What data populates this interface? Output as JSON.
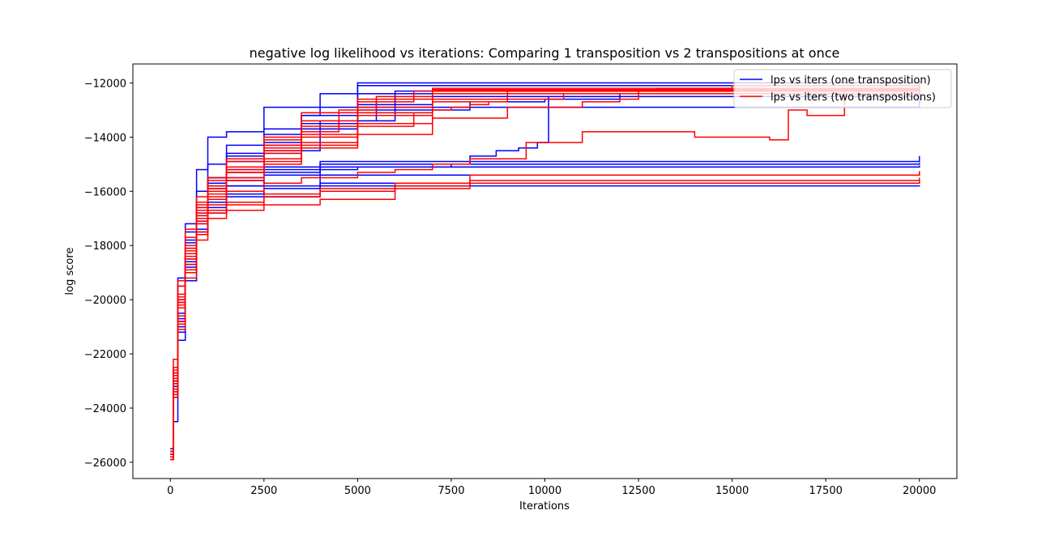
{
  "chart_data": {
    "type": "line",
    "title": "negative log likelihood vs iterations: Comparing 1 transposition vs 2 transpositions at once",
    "xlabel": "Iterations",
    "ylabel": "log score",
    "xlim": [
      -1000,
      21000
    ],
    "ylim": [
      -26600,
      -11300
    ],
    "xticks": [
      0,
      2500,
      5000,
      7500,
      10000,
      12500,
      15000,
      17500,
      20000
    ],
    "xtick_labels": [
      "0",
      "2500",
      "5000",
      "7500",
      "10000",
      "12500",
      "15000",
      "17500",
      "20000"
    ],
    "yticks": [
      -26000,
      -24000,
      -22000,
      -20000,
      -18000,
      -16000,
      -14000,
      -12000
    ],
    "ytick_labels": [
      "−26000",
      "−24000",
      "−22000",
      "−20000",
      "−18000",
      "−16000",
      "−14000",
      "−12000"
    ],
    "grid": false,
    "legend_position": "top-right",
    "colors": {
      "one": "#0000ff",
      "two": "#ff0000"
    },
    "legend": [
      {
        "label": "lps vs iters (one transposition)",
        "color": "#0000ff"
      },
      {
        "label": "lps vs iters (two transpositions)",
        "color": "#ff0000"
      }
    ],
    "series": [
      {
        "group": "one",
        "color": "#0000ff",
        "x": [
          0,
          80,
          200,
          400,
          700,
          1000,
          1500,
          2500,
          20000
        ],
        "y": [
          -25800,
          -23000,
          -20000,
          -17500,
          -15200,
          -14000,
          -13800,
          -12900,
          -12500
        ]
      },
      {
        "group": "one",
        "color": "#0000ff",
        "x": [
          0,
          80,
          200,
          400,
          700,
          1000,
          1500,
          2500,
          3500,
          5000,
          20000
        ],
        "y": [
          -25600,
          -22800,
          -19200,
          -17200,
          -16000,
          -15000,
          -14300,
          -13700,
          -13200,
          -12000,
          -11950
        ]
      },
      {
        "group": "one",
        "color": "#0000ff",
        "x": [
          0,
          80,
          200,
          400,
          700,
          1000,
          1500,
          2500,
          3500,
          5000,
          20000
        ],
        "y": [
          -25500,
          -22500,
          -19500,
          -17800,
          -16700,
          -15800,
          -14600,
          -13900,
          -13400,
          -12100,
          -12000
        ]
      },
      {
        "group": "one",
        "color": "#0000ff",
        "x": [
          0,
          80,
          200,
          400,
          700,
          1000,
          1500,
          2500,
          3500,
          4000,
          20000
        ],
        "y": [
          -25700,
          -23200,
          -20500,
          -18500,
          -16800,
          -15500,
          -14700,
          -14100,
          -13200,
          -12400,
          -12100
        ]
      },
      {
        "group": "one",
        "color": "#0000ff",
        "x": [
          0,
          80,
          200,
          400,
          700,
          1000,
          1500,
          2500,
          3500,
          4500,
          5500,
          6000,
          20000
        ],
        "y": [
          -25900,
          -23500,
          -21000,
          -18600,
          -16900,
          -16000,
          -15300,
          -14600,
          -13800,
          -13400,
          -12700,
          -12300,
          -12200
        ]
      },
      {
        "group": "one",
        "color": "#0000ff",
        "x": [
          0,
          80,
          200,
          400,
          700,
          1000,
          1500,
          2500,
          4000,
          6000,
          20000
        ],
        "y": [
          -25600,
          -23100,
          -20300,
          -18100,
          -16700,
          -15900,
          -15200,
          -14500,
          -13400,
          -12500,
          -12300
        ]
      },
      {
        "group": "one",
        "color": "#0000ff",
        "x": [
          0,
          80,
          200,
          400,
          700,
          1000,
          1500,
          2500,
          3500,
          5000,
          7000,
          20000
        ],
        "y": [
          -25800,
          -22900,
          -19900,
          -17900,
          -16400,
          -15700,
          -14900,
          -14300,
          -13700,
          -12800,
          -12400,
          -12250
        ]
      },
      {
        "group": "one",
        "color": "#0000ff",
        "x": [
          0,
          80,
          200,
          400,
          700,
          1000,
          1500,
          2500,
          3500,
          5000,
          8000,
          10000,
          12000,
          20000
        ],
        "y": [
          -25500,
          -22700,
          -20100,
          -18300,
          -16600,
          -15500,
          -15100,
          -14200,
          -13500,
          -13000,
          -12700,
          -12600,
          -12400,
          -12200
        ]
      },
      {
        "group": "one",
        "color": "#0000ff",
        "x": [
          0,
          80,
          200,
          400,
          700,
          1000,
          1500,
          2500,
          3500,
          5000,
          7500,
          8000,
          8700,
          9300,
          9800,
          10100,
          20000
        ],
        "y": [
          -25700,
          -23400,
          -20800,
          -18800,
          -17000,
          -16000,
          -15500,
          -15200,
          -15200,
          -15100,
          -15000,
          -14700,
          -14500,
          -14400,
          -14200,
          -12500,
          -12400
        ]
      },
      {
        "group": "one",
        "color": "#0000ff",
        "x": [
          0,
          80,
          200,
          400,
          700,
          1000,
          1500,
          2500,
          4000,
          20000
        ],
        "y": [
          -25900,
          -23600,
          -21200,
          -19000,
          -17200,
          -16400,
          -15600,
          -15100,
          -14900,
          -14700
        ]
      },
      {
        "group": "one",
        "color": "#0000ff",
        "x": [
          0,
          80,
          200,
          400,
          700,
          1000,
          1500,
          2500,
          4000,
          20000
        ],
        "y": [
          -25800,
          -23300,
          -20700,
          -18700,
          -17100,
          -16300,
          -15800,
          -15300,
          -15000,
          -14950
        ]
      },
      {
        "group": "one",
        "color": "#0000ff",
        "x": [
          0,
          80,
          200,
          400,
          700,
          1000,
          1500,
          2500,
          4000,
          20000
        ],
        "y": [
          -25700,
          -23000,
          -20600,
          -18700,
          -17000,
          -16300,
          -15800,
          -15400,
          -15100,
          -15050
        ]
      },
      {
        "group": "one",
        "color": "#0000ff",
        "x": [
          0,
          80,
          200,
          400,
          700,
          1000,
          1500,
          2500,
          4000,
          20000
        ],
        "y": [
          -25800,
          -23200,
          -20800,
          -18900,
          -17400,
          -16600,
          -16100,
          -15800,
          -15400,
          -15300
        ]
      },
      {
        "group": "one",
        "color": "#0000ff",
        "x": [
          0,
          80,
          200,
          400,
          700,
          1000,
          1500,
          2500,
          4000,
          20000
        ],
        "y": [
          -25600,
          -23000,
          -20800,
          -19000,
          -17500,
          -16700,
          -16200,
          -15900,
          -15700,
          -15650
        ]
      },
      {
        "group": "one",
        "color": "#0000ff",
        "x": [
          0,
          80,
          200,
          400,
          700,
          1000,
          1500,
          2500,
          4000,
          20000
        ],
        "y": [
          -25900,
          -24500,
          -21500,
          -19300,
          -17600,
          -16800,
          -16400,
          -16200,
          -15800,
          -15780
        ]
      },
      {
        "group": "two",
        "color": "#ff0000",
        "x": [
          0,
          80,
          200,
          400,
          700,
          1000,
          1500,
          2500,
          3500,
          5000,
          6500,
          20000
        ],
        "y": [
          -25900,
          -22800,
          -19800,
          -18000,
          -16500,
          -15800,
          -15100,
          -14100,
          -13100,
          -12700,
          -12300,
          -12100
        ]
      },
      {
        "group": "two",
        "color": "#ff0000",
        "x": [
          0,
          80,
          200,
          400,
          700,
          1000,
          1500,
          2500,
          3500,
          5000,
          7000,
          20000
        ],
        "y": [
          -25800,
          -22500,
          -19500,
          -17700,
          -16400,
          -15600,
          -14800,
          -14000,
          -13400,
          -12600,
          -12200,
          -12000
        ]
      },
      {
        "group": "two",
        "color": "#ff0000",
        "x": [
          0,
          80,
          200,
          400,
          700,
          1000,
          1500,
          2500,
          3500,
          5000,
          7000,
          20000
        ],
        "y": [
          -25700,
          -22200,
          -19300,
          -17400,
          -16200,
          -15500,
          -14900,
          -14300,
          -13600,
          -12900,
          -12300,
          -12050
        ]
      },
      {
        "group": "two",
        "color": "#ff0000",
        "x": [
          0,
          80,
          200,
          400,
          700,
          1000,
          1500,
          2500,
          3500,
          5000,
          7000,
          20000
        ],
        "y": [
          -25600,
          -22600,
          -19900,
          -18200,
          -16700,
          -15900,
          -15200,
          -14500,
          -13900,
          -13100,
          -12400,
          -12150
        ]
      },
      {
        "group": "two",
        "color": "#ff0000",
        "x": [
          0,
          80,
          200,
          400,
          700,
          1000,
          1500,
          2500,
          3500,
          5000,
          7000,
          9000,
          20000
        ],
        "y": [
          -25800,
          -22900,
          -20000,
          -18100,
          -16600,
          -15900,
          -15300,
          -14600,
          -14000,
          -13200,
          -12600,
          -12300,
          -12100
        ]
      },
      {
        "group": "two",
        "color": "#ff0000",
        "x": [
          0,
          80,
          200,
          400,
          700,
          1000,
          1500,
          2500,
          3500,
          5000,
          7000,
          9000,
          20000
        ],
        "y": [
          -25900,
          -23100,
          -20200,
          -18400,
          -16900,
          -16100,
          -15500,
          -14800,
          -14200,
          -13500,
          -12700,
          -12400,
          -12200
        ]
      },
      {
        "group": "two",
        "color": "#ff0000",
        "x": [
          0,
          80,
          200,
          400,
          700,
          1000,
          1500,
          2500,
          3500,
          4500,
          5500,
          7000,
          20000
        ],
        "y": [
          -25700,
          -22700,
          -20100,
          -18300,
          -16800,
          -16000,
          -15300,
          -14400,
          -13800,
          -13000,
          -12500,
          -12250,
          -12000
        ]
      },
      {
        "group": "two",
        "color": "#ff0000",
        "x": [
          0,
          80,
          200,
          400,
          700,
          1000,
          1500,
          2500,
          3500,
          5000,
          6500,
          7000,
          7500,
          8000,
          8500,
          9000,
          10500,
          20000
        ],
        "y": [
          -25800,
          -23000,
          -20300,
          -18500,
          -17100,
          -16300,
          -15600,
          -14900,
          -14300,
          -13600,
          -13100,
          -13000,
          -12900,
          -12800,
          -12700,
          -12600,
          -12400,
          -12250
        ]
      },
      {
        "group": "two",
        "color": "#ff0000",
        "x": [
          0,
          80,
          200,
          400,
          700,
          1000,
          1500,
          2500,
          3500,
          5000,
          7000,
          9000,
          11000,
          12000,
          12500,
          13000,
          15000,
          20000
        ],
        "y": [
          -25600,
          -22800,
          -20100,
          -18300,
          -17000,
          -16200,
          -15600,
          -15000,
          -14400,
          -13900,
          -13300,
          -12900,
          -12700,
          -12600,
          -12300,
          -12200,
          -12100,
          -12000
        ]
      },
      {
        "group": "two",
        "color": "#ff0000",
        "x": [
          0,
          80,
          200,
          400,
          700,
          1000,
          1500,
          2500,
          3500,
          5000,
          6000,
          7000,
          8000,
          9500,
          11000,
          14000,
          16000,
          16400,
          16500,
          17000,
          18000,
          20000
        ],
        "y": [
          -25900,
          -23300,
          -20600,
          -18700,
          -17200,
          -16500,
          -16000,
          -15700,
          -15500,
          -15300,
          -15200,
          -15000,
          -14800,
          -14200,
          -13800,
          -14000,
          -14100,
          -14100,
          -13000,
          -13200,
          -12200,
          -12000
        ]
      },
      {
        "group": "two",
        "color": "#ff0000",
        "x": [
          0,
          80,
          200,
          400,
          700,
          1000,
          1500,
          2500,
          4000,
          6000,
          8000,
          20000
        ],
        "y": [
          -25900,
          -23500,
          -20900,
          -19000,
          -17600,
          -16800,
          -16500,
          -16200,
          -16000,
          -15800,
          -15600,
          -15500
        ]
      },
      {
        "group": "two",
        "color": "#ff0000",
        "x": [
          0,
          80,
          200,
          400,
          700,
          1000,
          1500,
          2500,
          4000,
          6000,
          8000,
          20000
        ],
        "y": [
          -25800,
          -23400,
          -20800,
          -18900,
          -17500,
          -16700,
          -16400,
          -16100,
          -15900,
          -15700,
          -15400,
          -15250
        ]
      },
      {
        "group": "two",
        "color": "#ff0000",
        "x": [
          0,
          80,
          200,
          400,
          700,
          1000,
          1500,
          2500,
          4000,
          6000,
          8000,
          20000
        ],
        "y": [
          -25900,
          -23600,
          -21100,
          -19200,
          -17800,
          -17000,
          -16700,
          -16500,
          -16300,
          -15900,
          -15700,
          -15600
        ]
      }
    ]
  }
}
